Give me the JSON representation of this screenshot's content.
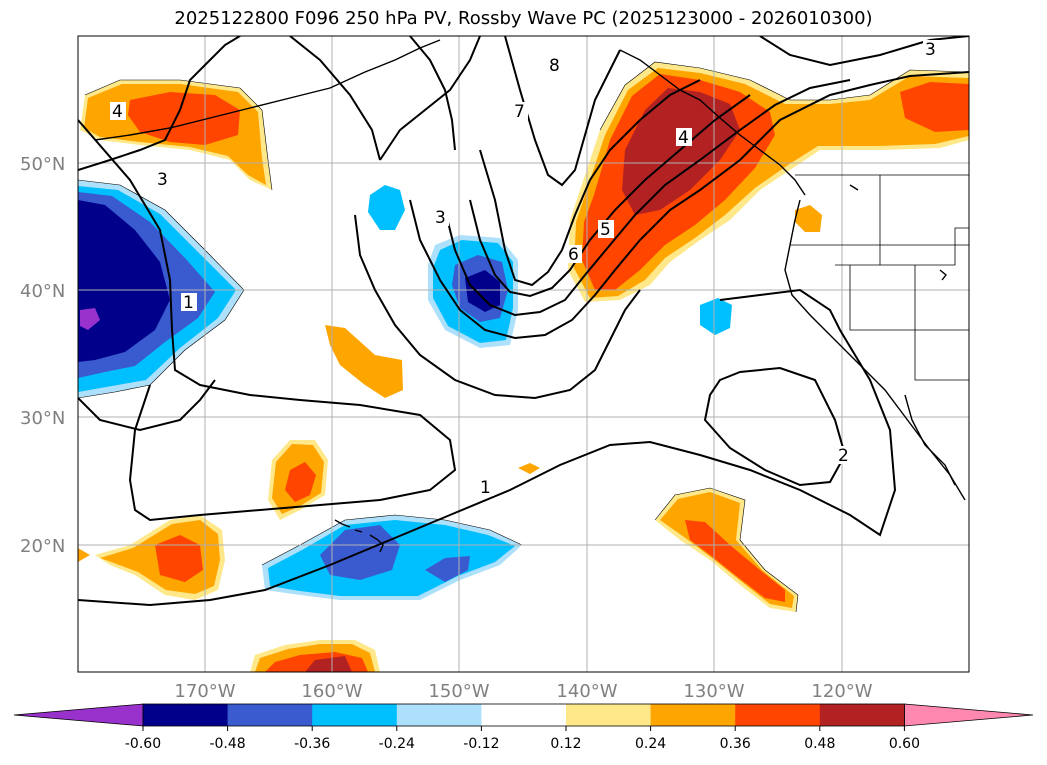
{
  "title": "2025122800 F096 250 hPa PV, Rossby Wave PC (2025123000 - 2026010300)",
  "lat_labels": [
    "50°N",
    "40°N",
    "30°N",
    "20°N"
  ],
  "lon_labels": [
    "170°W",
    "160°W",
    "150°W",
    "140°W",
    "130°W",
    "120°W"
  ],
  "contour_labels": [
    "1",
    "2",
    "3",
    "4",
    "5",
    "6",
    "7",
    "8"
  ],
  "colorbar": {
    "ticks": [
      "-0.60",
      "-0.48",
      "-0.36",
      "-0.24",
      "-0.12",
      "0.12",
      "0.24",
      "0.36",
      "0.48",
      "0.60"
    ],
    "colors": [
      "#9932CC",
      "#00008B",
      "#3A5BD0",
      "#00BFFF",
      "#ADE0FA",
      "#FFFFFF",
      "#FFE88A",
      "#FFA500",
      "#FF4500",
      "#B22222",
      "#FF88B0"
    ]
  },
  "colors": {
    "contour": "#000000",
    "grid": "#b0b0b0",
    "coast": "#000000"
  }
}
